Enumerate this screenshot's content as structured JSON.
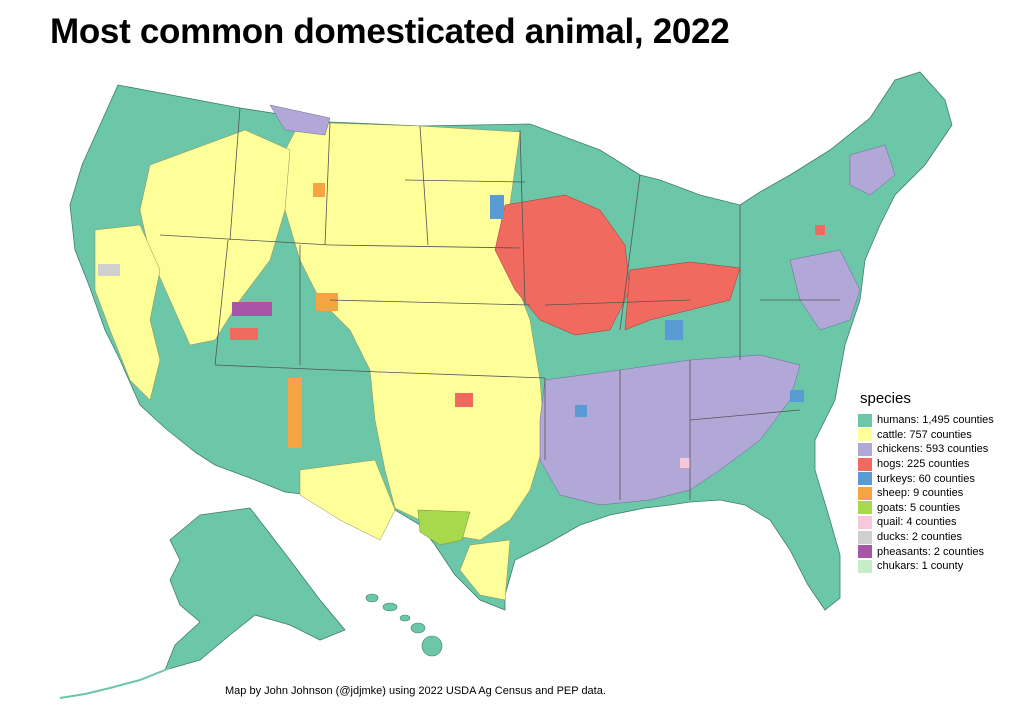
{
  "title": "Most common domesticated animal, 2022",
  "credit": "Map by John Johnson (@jdjmke) using 2022 USDA Ag Census and PEP data.",
  "legend": {
    "title": "species",
    "items": [
      {
        "label": "humans: 1,495 counties",
        "color": "#6cc6a8"
      },
      {
        "label": "cattle: 757 counties",
        "color": "#ffff99"
      },
      {
        "label": "chickens: 593 counties",
        "color": "#b2a8d8"
      },
      {
        "label": "hogs: 225 counties",
        "color": "#f16a5f"
      },
      {
        "label": "turkeys: 60 counties",
        "color": "#5b9bd5"
      },
      {
        "label": "sheep: 9 counties",
        "color": "#f6a342"
      },
      {
        "label": "goats: 5 counties",
        "color": "#a8d94c"
      },
      {
        "label": "quail: 4 counties",
        "color": "#f7c7dc"
      },
      {
        "label": "ducks: 2 counties",
        "color": "#cfcfcf"
      },
      {
        "label": "pheasants: 2 counties",
        "color": "#a855a8"
      },
      {
        "label": "chukars: 1 county",
        "color": "#c7edc8"
      }
    ]
  }
}
